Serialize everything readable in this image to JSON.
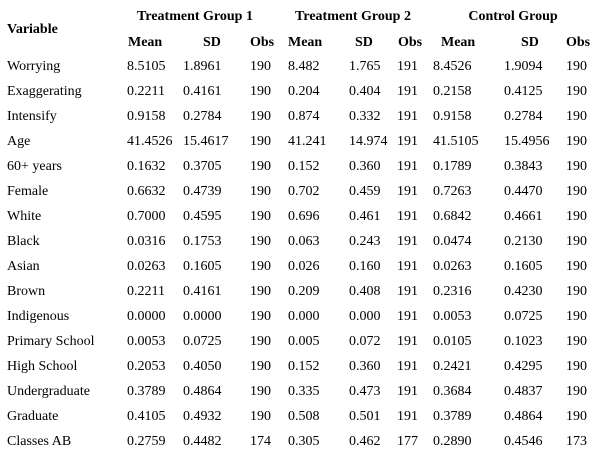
{
  "table": {
    "variable_header": "Variable",
    "groups": [
      "Treatment Group 1",
      "Treatment Group 2",
      "Control Group"
    ],
    "subheaders": [
      "Mean",
      "SD",
      "Obs",
      "Mean",
      "SD",
      "Obs",
      "Mean",
      "SD",
      "Obs"
    ],
    "rows": [
      [
        "Worrying",
        "8.5105",
        "1.8961",
        "190",
        "8.482",
        "1.765",
        "191",
        "8.4526",
        "1.9094",
        "190"
      ],
      [
        "Exaggerating",
        "0.2211",
        "0.4161",
        "190",
        "0.204",
        "0.404",
        "191",
        "0.2158",
        "0.4125",
        "190"
      ],
      [
        "Intensify",
        "0.9158",
        "0.2784",
        "190",
        "0.874",
        "0.332",
        "191",
        "0.9158",
        "0.2784",
        "190"
      ],
      [
        "Age",
        "41.4526",
        "15.4617",
        "190",
        "41.241",
        "14.974",
        "191",
        "41.5105",
        "15.4956",
        "190"
      ],
      [
        "60+ years",
        "0.1632",
        "0.3705",
        "190",
        "0.152",
        "0.360",
        "191",
        "0.1789",
        "0.3843",
        "190"
      ],
      [
        "Female",
        "0.6632",
        "0.4739",
        "190",
        "0.702",
        "0.459",
        "191",
        "0.7263",
        "0.4470",
        "190"
      ],
      [
        "White",
        "0.7000",
        "0.4595",
        "190",
        "0.696",
        "0.461",
        "191",
        "0.6842",
        "0.4661",
        "190"
      ],
      [
        "Black",
        "0.0316",
        "0.1753",
        "190",
        "0.063",
        "0.243",
        "191",
        "0.0474",
        "0.2130",
        "190"
      ],
      [
        "Asian",
        "0.0263",
        "0.1605",
        "190",
        "0.026",
        "0.160",
        "191",
        "0.0263",
        "0.1605",
        "190"
      ],
      [
        "Brown",
        "0.2211",
        "0.4161",
        "190",
        "0.209",
        "0.408",
        "191",
        "0.2316",
        "0.4230",
        "190"
      ],
      [
        "Indigenous",
        "0.0000",
        "0.0000",
        "190",
        "0.000",
        "0.000",
        "191",
        "0.0053",
        "0.0725",
        "190"
      ],
      [
        "Primary School",
        "0.0053",
        "0.0725",
        "190",
        "0.005",
        "0.072",
        "191",
        "0.0105",
        "0.1023",
        "190"
      ],
      [
        "High School",
        "0.2053",
        "0.4050",
        "190",
        "0.152",
        "0.360",
        "191",
        "0.2421",
        "0.4295",
        "190"
      ],
      [
        "Undergraduate",
        "0.3789",
        "0.4864",
        "190",
        "0.335",
        "0.473",
        "191",
        "0.3684",
        "0.4837",
        "190"
      ],
      [
        "Graduate",
        "0.4105",
        "0.4932",
        "190",
        "0.508",
        "0.501",
        "191",
        "0.3789",
        "0.4864",
        "190"
      ],
      [
        "Classes AB",
        "0.2759",
        "0.4482",
        "174",
        "0.305",
        "0.462",
        "177",
        "0.2890",
        "0.4546",
        "173"
      ]
    ]
  }
}
